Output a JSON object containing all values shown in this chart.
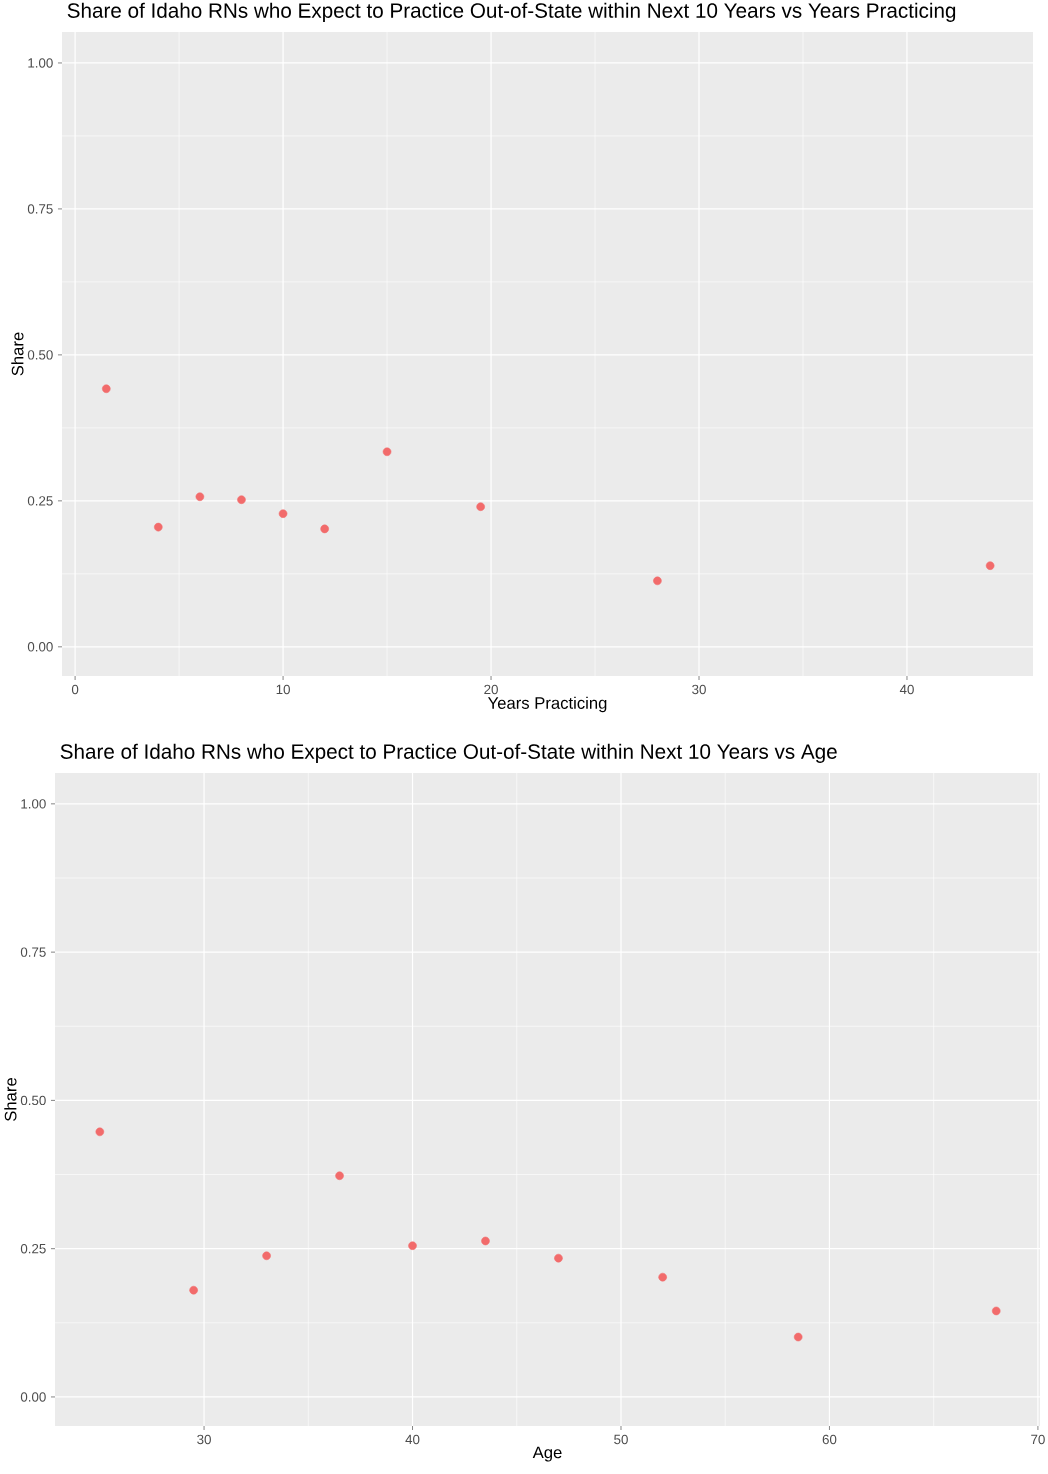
{
  "chart_data": [
    {
      "type": "scatter",
      "title": "Share of Idaho RNs who Expect to Practice Out-of-State within Next 10 Years vs Years Practicing",
      "xlabel": "Years Practicing",
      "ylabel": "Share",
      "color": "#f26b6b",
      "marker": "circle",
      "grid": true,
      "x": [
        1.5,
        4,
        6,
        8,
        10,
        12,
        15,
        19.5,
        28,
        44
      ],
      "values": [
        0.442,
        0.205,
        0.257,
        0.252,
        0.228,
        0.202,
        0.334,
        0.24,
        0.113,
        0.139
      ],
      "xlim": [
        -0.63,
        46.06
      ],
      "ylim": [
        -0.05,
        1.053
      ],
      "xticks": [
        0,
        10,
        20,
        30,
        40
      ],
      "yticks": [
        {
          "value": 0,
          "label": "0.00"
        },
        {
          "value": 0.25,
          "label": "0.25"
        },
        {
          "value": 0.5,
          "label": "0.50"
        },
        {
          "value": 0.75,
          "label": "0.75"
        },
        {
          "value": 1,
          "label": "1.00"
        }
      ]
    },
    {
      "type": "scatter",
      "title": "Share of Idaho RNs who Expect to Practice Out-of-State within Next 10 Years vs Age",
      "xlabel": "Age",
      "ylabel": "Share",
      "color": "#f26b6b",
      "marker": "circle",
      "grid": true,
      "x": [
        25,
        29.5,
        33,
        36.5,
        40,
        43.5,
        47,
        52,
        58.5,
        68
      ],
      "values": [
        0.447,
        0.18,
        0.238,
        0.373,
        0.255,
        0.263,
        0.234,
        0.202,
        0.101,
        0.145
      ],
      "xlim": [
        22.85,
        70.1
      ],
      "ylim": [
        -0.049,
        1.052
      ],
      "xticks": [
        30,
        40,
        50,
        60,
        70
      ],
      "yticks": [
        {
          "value": 0,
          "label": "0.00"
        },
        {
          "value": 0.25,
          "label": "0.25"
        },
        {
          "value": 0.5,
          "label": "0.50"
        },
        {
          "value": 0.75,
          "label": "0.75"
        },
        {
          "value": 1,
          "label": "1.00"
        }
      ]
    }
  ]
}
